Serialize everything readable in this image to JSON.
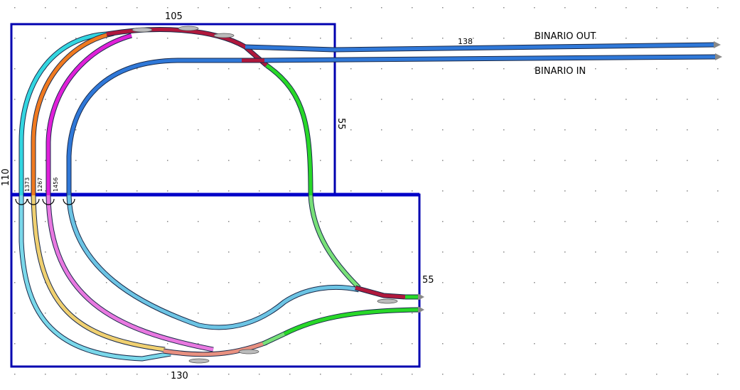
{
  "dimensions": {
    "top_width": "105",
    "top_right_height": "55",
    "left_height": "110",
    "bottom_right_height": "55",
    "bottom_width": "130",
    "line_length": "138"
  },
  "track_labels": {
    "out": "BINARIO OUT",
    "in": "BINARIO IN",
    "t1": "1373",
    "t2": "1267",
    "t3": "1456"
  },
  "colors": {
    "board": "#0000b0",
    "cyan": "#33d6e0",
    "orange": "#f07a20",
    "magenta": "#e020d8",
    "blue": "#2f78d8",
    "crimson": "#b0183c",
    "green": "#28d828",
    "light_cyan": "#7ad8ea",
    "light_yellow": "#f0d070",
    "pink": "#e878e0",
    "light_blue": "#6cc4e4",
    "light_green": "#78e078",
    "salmon": "#e89080"
  }
}
